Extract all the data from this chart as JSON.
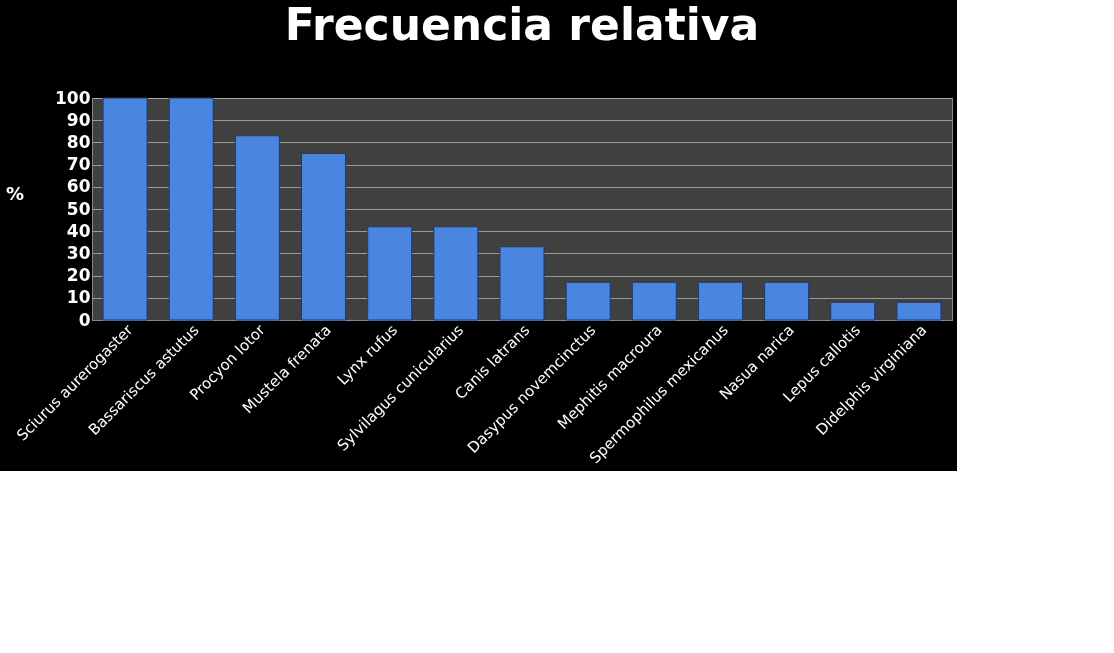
{
  "chart_data": {
    "type": "bar",
    "title": "Frecuencia relativa",
    "ylabel": "%",
    "categories": [
      "Sciurus aurerogaster",
      "Bassariscus astutus",
      "Procyon lotor",
      "Mustela frenata",
      "Lynx rufus",
      "Sylvilagus cunicularius",
      "Canis latrans",
      "Dasypus novemcinctus",
      "Mephitis macroura",
      "Spermophilus mexicanus",
      "Nasua narica",
      "Lepus callotis",
      "Didelphis virginiana"
    ],
    "values": [
      100,
      100,
      83,
      75,
      42,
      42,
      33,
      17,
      17,
      17,
      17,
      8,
      8
    ],
    "color": "#4a86df",
    "ylim": [
      0,
      100
    ],
    "yticks": [
      0,
      10,
      20,
      30,
      40,
      50,
      60,
      70,
      80,
      90,
      100
    ],
    "grid": "y"
  }
}
